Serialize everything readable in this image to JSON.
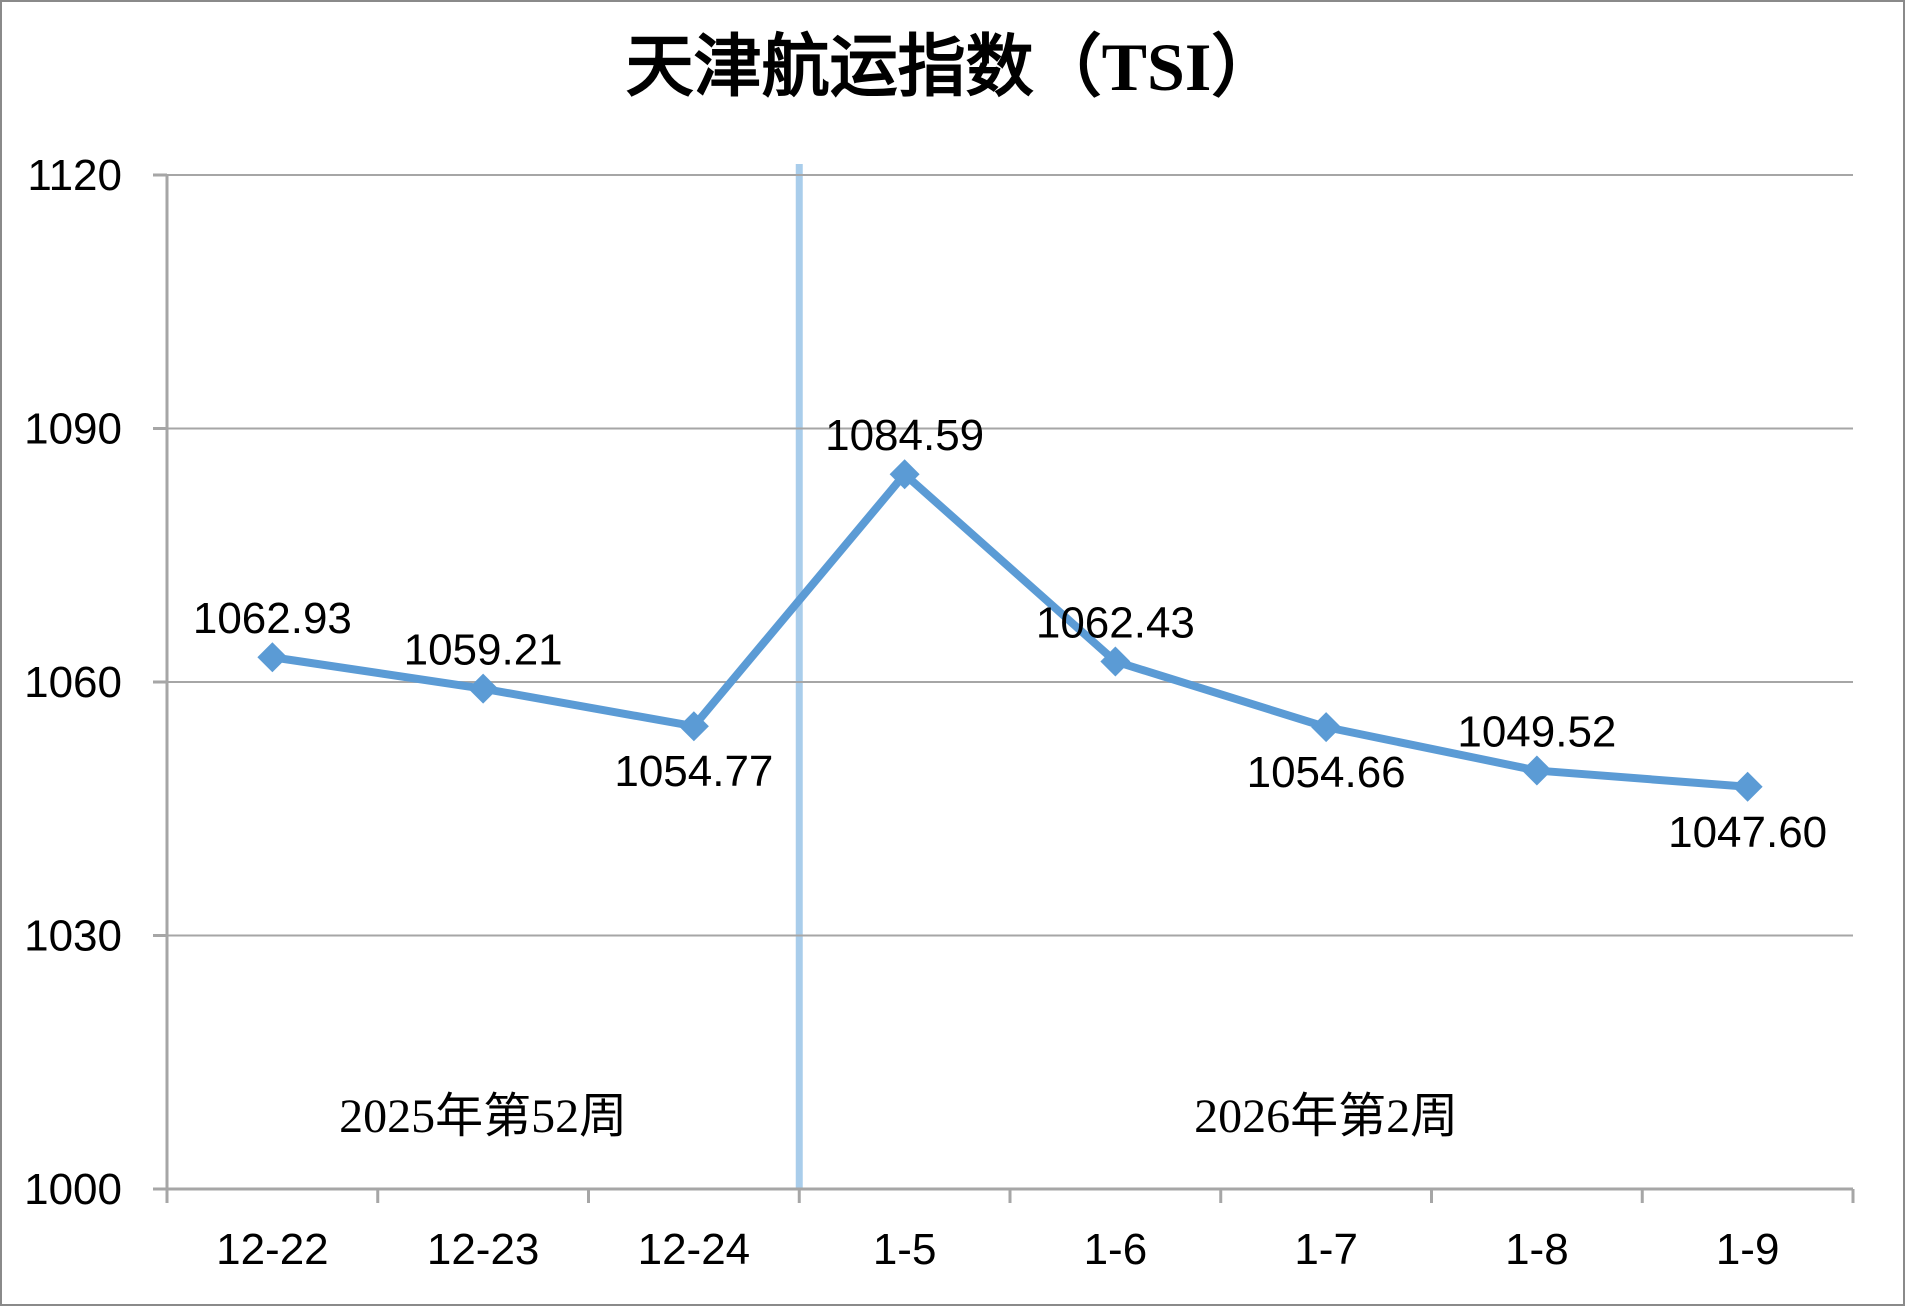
{
  "page": {
    "background": "#ffffff",
    "border_color": "#8a8a8a"
  },
  "chart_data": {
    "type": "line",
    "title": "天津航运指数（TSI）",
    "categories": [
      "12-22",
      "12-23",
      "12-24",
      "1-5",
      "1-6",
      "1-7",
      "1-8",
      "1-9"
    ],
    "series": [
      {
        "name": "TSI",
        "values": [
          1062.93,
          1059.21,
          1054.77,
          1084.59,
          1062.43,
          1054.66,
          1049.52,
          1047.6
        ],
        "color": "#5B9BD5",
        "marker": "diamond",
        "data_labels": [
          "1062.93",
          "1059.21",
          "1054.77",
          "1084.59",
          "1062.43",
          "1054.66",
          "1049.52",
          "1047.60"
        ],
        "label_positions": [
          "above",
          "above",
          "below",
          "above",
          "above",
          "below",
          "above",
          "below"
        ]
      }
    ],
    "xlabel": "",
    "ylabel": "",
    "ylim": [
      1000,
      1120
    ],
    "yticks": [
      1000,
      1030,
      1060,
      1090,
      1120
    ],
    "grid": "horizontal",
    "gridline_color": "#A6A6A6",
    "axis_color": "#A6A6A6",
    "text_color": "#000000",
    "legend": "none",
    "divider": {
      "boundary_index": 3,
      "color": "#A9CDEB"
    },
    "period_annotations": [
      {
        "label": "2025年第52周",
        "from_category": 0,
        "to_category": 2
      },
      {
        "label": "2026年第2周",
        "from_category": 3,
        "to_category": 7
      }
    ]
  }
}
